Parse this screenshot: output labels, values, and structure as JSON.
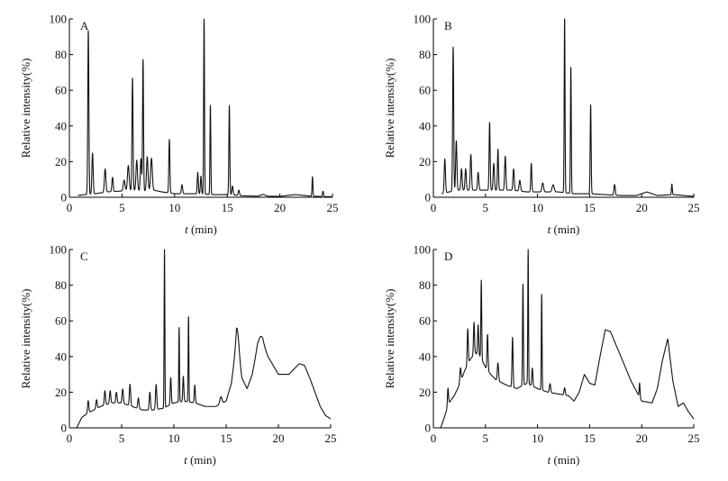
{
  "figure": {
    "x_axis_title_var": "t",
    "x_axis_title_rest": "(min)",
    "y_axis_title": "Relative intensity(%)"
  },
  "chart_data": [
    {
      "type": "line",
      "panel": "A",
      "xlim": [
        0,
        25
      ],
      "ylim": [
        0,
        100
      ],
      "xticks": [
        0,
        5,
        10,
        15,
        20,
        25
      ],
      "yticks": [
        0,
        20,
        40,
        60,
        80,
        100
      ],
      "xlabel": "t (min)",
      "ylabel": "Relative intensity(%)",
      "baseline": [
        [
          0.8,
          1
        ],
        [
          1.5,
          1.5
        ],
        [
          2.5,
          2
        ],
        [
          3.5,
          3
        ],
        [
          5,
          3.5
        ],
        [
          6,
          4
        ],
        [
          7,
          3.5
        ],
        [
          8,
          4
        ],
        [
          8.8,
          3
        ],
        [
          10,
          2
        ],
        [
          12,
          2
        ],
        [
          13.5,
          1.5
        ],
        [
          15,
          1.5
        ],
        [
          16.5,
          0.8
        ],
        [
          18,
          0.6
        ],
        [
          20,
          0.5
        ],
        [
          21.5,
          1.5
        ],
        [
          23,
          0.6
        ],
        [
          24,
          0.4
        ],
        [
          25,
          0.3
        ]
      ],
      "peaks": [
        {
          "t": 1.8,
          "h": 92,
          "w": 0.05
        },
        {
          "t": 2.2,
          "h": 23,
          "w": 0.06
        },
        {
          "t": 3.4,
          "h": 13,
          "w": 0.07
        },
        {
          "t": 4.1,
          "h": 8,
          "w": 0.06
        },
        {
          "t": 5.2,
          "h": 6,
          "w": 0.08
        },
        {
          "t": 5.6,
          "h": 14,
          "w": 0.08
        },
        {
          "t": 6.0,
          "h": 63,
          "w": 0.05
        },
        {
          "t": 6.4,
          "h": 17,
          "w": 0.07
        },
        {
          "t": 6.8,
          "h": 18,
          "w": 0.06
        },
        {
          "t": 7.0,
          "h": 74,
          "w": 0.045
        },
        {
          "t": 7.4,
          "h": 19,
          "w": 0.07
        },
        {
          "t": 7.8,
          "h": 18,
          "w": 0.08
        },
        {
          "t": 9.5,
          "h": 30,
          "w": 0.05
        },
        {
          "t": 10.7,
          "h": 5,
          "w": 0.06
        },
        {
          "t": 12.2,
          "h": 12,
          "w": 0.05
        },
        {
          "t": 12.5,
          "h": 10,
          "w": 0.05
        },
        {
          "t": 12.8,
          "h": 100,
          "w": 0.04
        },
        {
          "t": 13.4,
          "h": 50,
          "w": 0.04
        },
        {
          "t": 15.2,
          "h": 50,
          "w": 0.045
        },
        {
          "t": 15.5,
          "h": 5,
          "w": 0.06
        },
        {
          "t": 16.1,
          "h": 3,
          "w": 0.06
        },
        {
          "t": 18.4,
          "h": 1,
          "w": 0.2
        },
        {
          "t": 23.1,
          "h": 11,
          "w": 0.04
        },
        {
          "t": 24.1,
          "h": 3,
          "w": 0.05
        }
      ]
    },
    {
      "type": "line",
      "panel": "B",
      "xlim": [
        0,
        25
      ],
      "ylim": [
        0,
        100
      ],
      "xticks": [
        0,
        5,
        10,
        15,
        20,
        25
      ],
      "yticks": [
        0,
        20,
        40,
        60,
        80,
        100
      ],
      "xlabel": "t (min)",
      "ylabel": "Relative intensity(%)",
      "baseline": [
        [
          0.8,
          2
        ],
        [
          1.5,
          3
        ],
        [
          2.5,
          4
        ],
        [
          3.5,
          4
        ],
        [
          5,
          4
        ],
        [
          6,
          4
        ],
        [
          7.5,
          4
        ],
        [
          9,
          3
        ],
        [
          10.5,
          3
        ],
        [
          12,
          3
        ],
        [
          13.5,
          2
        ],
        [
          15,
          2
        ],
        [
          16.5,
          1.5
        ],
        [
          18,
          1
        ],
        [
          19.5,
          1
        ],
        [
          20.5,
          3
        ],
        [
          21.5,
          1
        ],
        [
          23,
          1.5
        ],
        [
          25,
          0.5
        ]
      ],
      "peaks": [
        {
          "t": 1.1,
          "h": 19,
          "w": 0.06
        },
        {
          "t": 1.9,
          "h": 81,
          "w": 0.05
        },
        {
          "t": 2.2,
          "h": 28,
          "w": 0.06
        },
        {
          "t": 2.7,
          "h": 12,
          "w": 0.06
        },
        {
          "t": 3.1,
          "h": 12,
          "w": 0.06
        },
        {
          "t": 3.6,
          "h": 20,
          "w": 0.06
        },
        {
          "t": 4.3,
          "h": 10,
          "w": 0.06
        },
        {
          "t": 5.4,
          "h": 38,
          "w": 0.05
        },
        {
          "t": 5.8,
          "h": 15,
          "w": 0.06
        },
        {
          "t": 6.2,
          "h": 23,
          "w": 0.05
        },
        {
          "t": 6.9,
          "h": 19,
          "w": 0.06
        },
        {
          "t": 7.7,
          "h": 12,
          "w": 0.06
        },
        {
          "t": 8.3,
          "h": 6,
          "w": 0.07
        },
        {
          "t": 9.4,
          "h": 16,
          "w": 0.05
        },
        {
          "t": 10.5,
          "h": 5,
          "w": 0.08
        },
        {
          "t": 11.5,
          "h": 4,
          "w": 0.1
        },
        {
          "t": 12.6,
          "h": 99,
          "w": 0.04
        },
        {
          "t": 13.2,
          "h": 71,
          "w": 0.04
        },
        {
          "t": 15.1,
          "h": 50,
          "w": 0.045
        },
        {
          "t": 17.4,
          "h": 6,
          "w": 0.06
        },
        {
          "t": 22.9,
          "h": 6,
          "w": 0.04
        }
      ]
    },
    {
      "type": "line",
      "panel": "C",
      "xlim": [
        0,
        25
      ],
      "ylim": [
        0,
        100
      ],
      "xticks": [
        0,
        5,
        10,
        15,
        20,
        25
      ],
      "yticks": [
        0,
        20,
        40,
        60,
        80,
        100
      ],
      "xlabel": "t (min)",
      "ylabel": "Relative intensity(%)",
      "baseline": [
        [
          0.7,
          0
        ],
        [
          1.2,
          6
        ],
        [
          2,
          9
        ],
        [
          3,
          12
        ],
        [
          4,
          14
        ],
        [
          5,
          14
        ],
        [
          6,
          12
        ],
        [
          7,
          10
        ],
        [
          8,
          10
        ],
        [
          9,
          11
        ],
        [
          10,
          14
        ],
        [
          11,
          15
        ],
        [
          12,
          14
        ],
        [
          13,
          12
        ],
        [
          14,
          12
        ],
        [
          15,
          15
        ],
        [
          15.5,
          25
        ],
        [
          16,
          48
        ],
        [
          16.5,
          28
        ],
        [
          17,
          22
        ],
        [
          17.5,
          30
        ],
        [
          18,
          46
        ],
        [
          18.5,
          48
        ],
        [
          19,
          40
        ],
        [
          20,
          30
        ],
        [
          21,
          30
        ],
        [
          22,
          36
        ],
        [
          22.5,
          35
        ],
        [
          23,
          28
        ],
        [
          24,
          12
        ],
        [
          24.5,
          7
        ],
        [
          25,
          5
        ]
      ],
      "peaks": [
        {
          "t": 1.8,
          "h": 7,
          "w": 0.06
        },
        {
          "t": 2.6,
          "h": 5,
          "w": 0.06
        },
        {
          "t": 3.4,
          "h": 8,
          "w": 0.06
        },
        {
          "t": 3.9,
          "h": 7,
          "w": 0.06
        },
        {
          "t": 4.5,
          "h": 6,
          "w": 0.06
        },
        {
          "t": 5.1,
          "h": 8,
          "w": 0.06
        },
        {
          "t": 5.8,
          "h": 12,
          "w": 0.06
        },
        {
          "t": 6.6,
          "h": 6,
          "w": 0.06
        },
        {
          "t": 7.7,
          "h": 10,
          "w": 0.06
        },
        {
          "t": 8.3,
          "h": 14,
          "w": 0.06
        },
        {
          "t": 9.1,
          "h": 89,
          "w": 0.035
        },
        {
          "t": 9.7,
          "h": 15,
          "w": 0.05
        },
        {
          "t": 10.5,
          "h": 42,
          "w": 0.035
        },
        {
          "t": 10.9,
          "h": 14,
          "w": 0.05
        },
        {
          "t": 11.4,
          "h": 48,
          "w": 0.035
        },
        {
          "t": 12.0,
          "h": 10,
          "w": 0.05
        },
        {
          "t": 14.5,
          "h": 4,
          "w": 0.1
        },
        {
          "t": 16.1,
          "h": 10,
          "w": 0.15
        },
        {
          "t": 18.3,
          "h": 4,
          "w": 0.2
        }
      ]
    },
    {
      "type": "line",
      "panel": "D",
      "xlim": [
        0,
        25
      ],
      "ylim": [
        0,
        100
      ],
      "xticks": [
        0,
        5,
        10,
        15,
        20,
        25
      ],
      "yticks": [
        0,
        20,
        40,
        60,
        80,
        100
      ],
      "xlabel": "t (min)",
      "ylabel": "Relative intensity(%)",
      "baseline": [
        [
          0.7,
          0
        ],
        [
          1.0,
          5
        ],
        [
          1.5,
          14
        ],
        [
          2,
          18
        ],
        [
          2.5,
          24
        ],
        [
          3,
          32
        ],
        [
          3.5,
          38
        ],
        [
          4,
          42
        ],
        [
          4.5,
          40
        ],
        [
          5,
          34
        ],
        [
          5.5,
          30
        ],
        [
          6,
          27
        ],
        [
          7,
          24
        ],
        [
          8,
          22
        ],
        [
          9,
          25
        ],
        [
          10,
          22
        ],
        [
          11,
          20
        ],
        [
          12,
          19
        ],
        [
          13,
          18
        ],
        [
          13.5,
          15
        ],
        [
          14,
          20
        ],
        [
          14.5,
          30
        ],
        [
          15,
          25
        ],
        [
          15.5,
          24
        ],
        [
          16,
          40
        ],
        [
          16.5,
          55
        ],
        [
          17,
          54
        ],
        [
          18,
          40
        ],
        [
          19,
          26
        ],
        [
          20,
          15
        ],
        [
          21,
          14
        ],
        [
          21.5,
          22
        ],
        [
          22,
          38
        ],
        [
          22.5,
          50
        ],
        [
          23,
          26
        ],
        [
          23.5,
          12
        ],
        [
          24,
          14
        ],
        [
          24.5,
          9
        ],
        [
          25,
          5
        ]
      ],
      "peaks": [
        {
          "t": 1.4,
          "h": 10,
          "w": 0.05
        },
        {
          "t": 2.6,
          "h": 8,
          "w": 0.06
        },
        {
          "t": 3.3,
          "h": 20,
          "w": 0.05
        },
        {
          "t": 3.9,
          "h": 18,
          "w": 0.05
        },
        {
          "t": 4.3,
          "h": 17,
          "w": 0.05
        },
        {
          "t": 4.6,
          "h": 44,
          "w": 0.04
        },
        {
          "t": 5.2,
          "h": 20,
          "w": 0.05
        },
        {
          "t": 6.2,
          "h": 10,
          "w": 0.06
        },
        {
          "t": 7.6,
          "h": 28,
          "w": 0.05
        },
        {
          "t": 8.6,
          "h": 57,
          "w": 0.04
        },
        {
          "t": 9.1,
          "h": 76,
          "w": 0.035
        },
        {
          "t": 9.5,
          "h": 10,
          "w": 0.05
        },
        {
          "t": 10.4,
          "h": 54,
          "w": 0.035
        },
        {
          "t": 11.2,
          "h": 5,
          "w": 0.06
        },
        {
          "t": 12.6,
          "h": 4,
          "w": 0.06
        },
        {
          "t": 19.8,
          "h": 8,
          "w": 0.04
        }
      ]
    }
  ]
}
